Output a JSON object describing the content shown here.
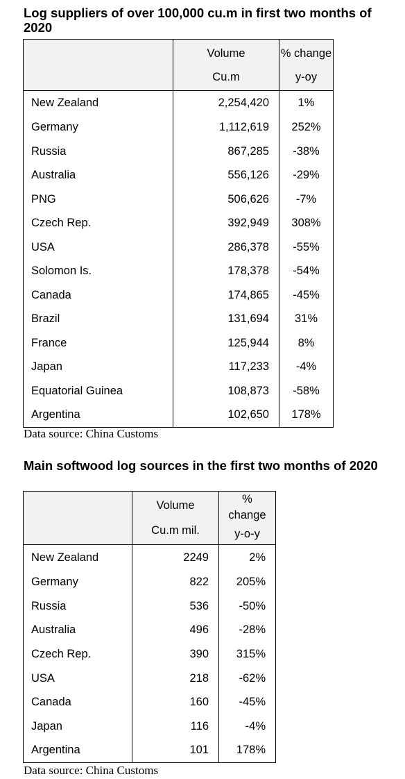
{
  "table1": {
    "title": "Log suppliers of over 100,000 cu.m in first two months of 2020",
    "header": {
      "col2_line1": "Volume",
      "col2_line2": "Cu.m",
      "col3_line1": "% change",
      "col3_line2": "y-oy"
    },
    "rows": [
      {
        "country": "New Zealand",
        "volume": "2,254,420",
        "change": "1%"
      },
      {
        "country": "Germany",
        "volume": "1,112,619",
        "change": "252%"
      },
      {
        "country": "Russia",
        "volume": "867,285",
        "change": "-38%"
      },
      {
        "country": "Australia",
        "volume": "556,126",
        "change": "-29%"
      },
      {
        "country": "PNG",
        "volume": "506,626",
        "change": "-7%"
      },
      {
        "country": "Czech Rep.",
        "volume": "392,949",
        "change": "308%"
      },
      {
        "country": "USA",
        "volume": "286,378",
        "change": "-55%"
      },
      {
        "country": "Solomon Is.",
        "volume": "178,378",
        "change": "-54%"
      },
      {
        "country": "Canada",
        "volume": "174,865",
        "change": "-45%"
      },
      {
        "country": "Brazil",
        "volume": "131,694",
        "change": "31%"
      },
      {
        "country": "France",
        "volume": "125,944",
        "change": "8%"
      },
      {
        "country": "Japan",
        "volume": "117,233",
        "change": "-4%"
      },
      {
        "country": "Equatorial Guinea",
        "volume": "108,873",
        "change": "-58%"
      },
      {
        "country": "Argentina",
        "volume": "102,650",
        "change": "178%"
      }
    ],
    "source": "Data source: China Customs"
  },
  "table2": {
    "title": "Main softwood log sources in the first two months of 2020",
    "header": {
      "col2_line1": "Volume",
      "col2_line2": "Cu.m mil.",
      "col3_line1": "%",
      "col3_line2": "change",
      "col3_line3": "y-o-y"
    },
    "rows": [
      {
        "country": "New Zealand",
        "volume": "2249",
        "change": "2%"
      },
      {
        "country": "Germany",
        "volume": "822",
        "change": "205%"
      },
      {
        "country": "Russia",
        "volume": "536",
        "change": "-50%"
      },
      {
        "country": "Australia",
        "volume": "496",
        "change": "-28%"
      },
      {
        "country": "Czech Rep.",
        "volume": "390",
        "change": "315%"
      },
      {
        "country": "USA",
        "volume": "218",
        "change": "-62%"
      },
      {
        "country": "Canada",
        "volume": "160",
        "change": "-45%"
      },
      {
        "country": "Japan",
        "volume": "116",
        "change": "-4%"
      },
      {
        "country": "Argentina",
        "volume": "101",
        "change": "178%"
      }
    ],
    "source": "Data source: China Customs"
  }
}
